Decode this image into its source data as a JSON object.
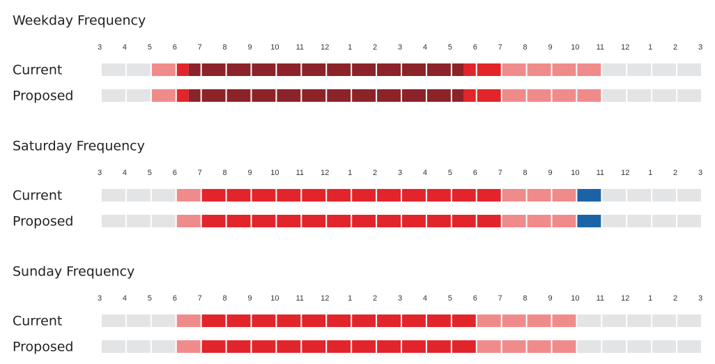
{
  "hour_labels": [
    "3",
    "4",
    "5",
    "6",
    "7",
    "8",
    "9",
    "10",
    "11",
    "12",
    "1",
    "2",
    "3",
    "4",
    "5",
    "6",
    "7",
    "8",
    "9",
    "10",
    "11",
    "12",
    "1",
    "2",
    "3"
  ],
  "sections": [
    {
      "title": "Weekday Frequency",
      "rows": [
        {
          "label": "Current",
          "segments": [
            {
              "hours": 2,
              "color": "#e3e4e6"
            },
            {
              "hours": 1,
              "color": "#f08b8b"
            },
            {
              "hours": 0.5,
              "color": "#e2252b"
            },
            {
              "hours": 11,
              "color": "#8b2328"
            },
            {
              "hours": 1.5,
              "color": "#e2252b"
            },
            {
              "hours": 4,
              "color": "#f08b8b"
            },
            {
              "hours": 4,
              "color": "#e3e4e6"
            }
          ]
        },
        {
          "label": "Proposed",
          "segments": [
            {
              "hours": 2,
              "color": "#e3e4e6"
            },
            {
              "hours": 1,
              "color": "#f08b8b"
            },
            {
              "hours": 0.5,
              "color": "#e2252b"
            },
            {
              "hours": 11,
              "color": "#8b2328"
            },
            {
              "hours": 1.5,
              "color": "#e2252b"
            },
            {
              "hours": 4,
              "color": "#f08b8b"
            },
            {
              "hours": 4,
              "color": "#e3e4e6"
            }
          ]
        }
      ]
    },
    {
      "title": "Saturday Frequency",
      "rows": [
        {
          "label": "Current",
          "segments": [
            {
              "hours": 3,
              "color": "#e3e4e6"
            },
            {
              "hours": 1,
              "color": "#f08b8b"
            },
            {
              "hours": 12,
              "color": "#e2252b"
            },
            {
              "hours": 3,
              "color": "#f08b8b"
            },
            {
              "hours": 1,
              "color": "#1a64a6"
            },
            {
              "hours": 4,
              "color": "#e3e4e6"
            }
          ]
        },
        {
          "label": "Proposed",
          "segments": [
            {
              "hours": 3,
              "color": "#e3e4e6"
            },
            {
              "hours": 1,
              "color": "#f08b8b"
            },
            {
              "hours": 12,
              "color": "#e2252b"
            },
            {
              "hours": 3,
              "color": "#f08b8b"
            },
            {
              "hours": 1,
              "color": "#1a64a6"
            },
            {
              "hours": 4,
              "color": "#e3e4e6"
            }
          ]
        }
      ]
    },
    {
      "title": "Sunday Frequency",
      "rows": [
        {
          "label": "Current",
          "segments": [
            {
              "hours": 3,
              "color": "#e3e4e6"
            },
            {
              "hours": 1,
              "color": "#f08b8b"
            },
            {
              "hours": 11,
              "color": "#e2252b"
            },
            {
              "hours": 4,
              "color": "#f08b8b"
            },
            {
              "hours": 5,
              "color": "#e3e4e6"
            }
          ]
        },
        {
          "label": "Proposed",
          "segments": [
            {
              "hours": 3,
              "color": "#e3e4e6"
            },
            {
              "hours": 1,
              "color": "#f08b8b"
            },
            {
              "hours": 11,
              "color": "#e2252b"
            },
            {
              "hours": 4,
              "color": "#f08b8b"
            },
            {
              "hours": 5,
              "color": "#e3e4e6"
            }
          ]
        }
      ]
    }
  ]
}
